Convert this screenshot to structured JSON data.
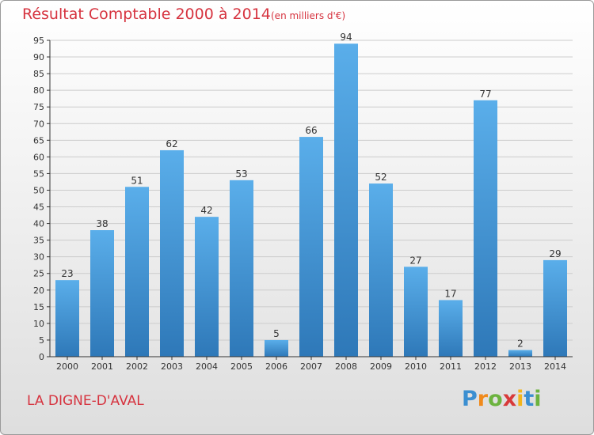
{
  "chart_data": {
    "type": "bar",
    "title": "Résultat Comptable 2000 à 2014",
    "subtitle": "(en milliers d'€)",
    "categories": [
      "2000",
      "2001",
      "2002",
      "2003",
      "2004",
      "2005",
      "2006",
      "2007",
      "2008",
      "2009",
      "2010",
      "2011",
      "2012",
      "2013",
      "2014"
    ],
    "values": [
      23,
      38,
      51,
      62,
      42,
      53,
      5,
      66,
      94,
      52,
      27,
      17,
      77,
      2,
      29
    ],
    "xlabel": "",
    "ylabel": "",
    "ylim": [
      0,
      95
    ],
    "yticks": [
      0,
      5,
      10,
      15,
      20,
      25,
      30,
      35,
      40,
      45,
      50,
      55,
      60,
      65,
      70,
      75,
      80,
      85,
      90,
      95
    ],
    "grid": true,
    "colors": {
      "bar_top": "#5aaeea",
      "bar_bottom": "#2e78b8",
      "grid": "#cccccc",
      "axis": "#333333"
    }
  },
  "footer": {
    "commune": "LA DIGNE-D'AVAL",
    "logo": {
      "p": "P",
      "r": "r",
      "o": "o",
      "x": "x",
      "i1": "i",
      "t": "t",
      "i2": "i"
    }
  }
}
